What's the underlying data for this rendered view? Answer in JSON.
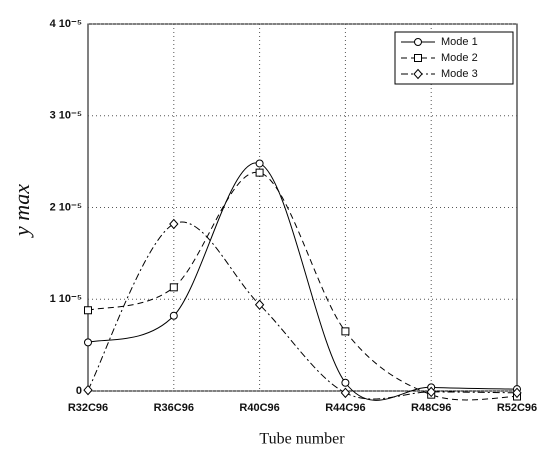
{
  "chart_data": {
    "type": "line",
    "xlabel": "Tube number",
    "ylabel": "y max",
    "categories": [
      "R32C96",
      "R36C96",
      "R40C96",
      "R44C96",
      "R48C96",
      "R52C96"
    ],
    "series": [
      {
        "name": "Mode 1",
        "color": "#000000",
        "marker": "circle",
        "dash": "solid",
        "values": [
          5.3e-06,
          8.2e-06,
          2.48e-05,
          9e-07,
          4e-07,
          2e-07
        ]
      },
      {
        "name": "Mode 2",
        "color": "#000000",
        "marker": "square",
        "dash": "dashed",
        "values": [
          8.8e-06,
          1.13e-05,
          2.38e-05,
          6.5e-06,
          -4e-07,
          -6e-07
        ]
      },
      {
        "name": "Mode 3",
        "color": "#000000",
        "marker": "diamond",
        "dash": "dashdot",
        "values": [
          1e-07,
          1.82e-05,
          9.4e-06,
          -2e-07,
          -1e-07,
          -2e-07
        ]
      }
    ],
    "ylim": [
      0,
      4e-05
    ],
    "yticks": [
      0,
      {
        "value": 1e-05,
        "label": "1 10⁻⁵"
      },
      {
        "value": 2e-05,
        "label": "2 10⁻⁵"
      },
      {
        "value": 3e-05,
        "label": "3 10⁻⁵"
      },
      {
        "value": 4e-05,
        "label": "4 10⁻⁵"
      }
    ],
    "grid": true,
    "legend": "upper right"
  }
}
